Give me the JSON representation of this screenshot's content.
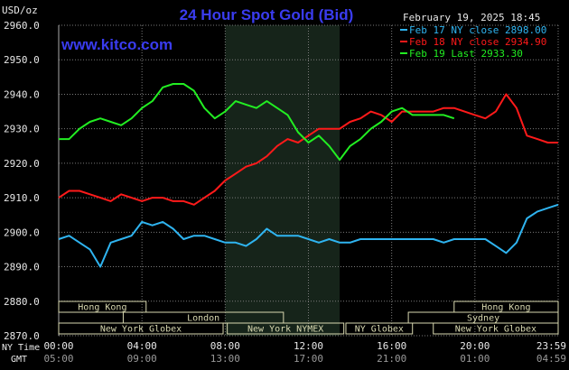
{
  "header": {
    "title": "24 Hour Spot Gold (Bid)",
    "unit": "USD/oz",
    "website": "www.kitco.com",
    "date": "February 19, 2025 18:45"
  },
  "colors": {
    "background": "#000000",
    "title": "#3a3cf0",
    "website": "#3a3cf0",
    "grid": "#7a7a7a",
    "axis_text": "#e8e8e8",
    "session_bar": "#d8d8b0",
    "ny_shade": "#16241a",
    "feb17": "#2fb4f0",
    "feb18": "#ff1a1a",
    "feb19": "#22ee22"
  },
  "chart_data": {
    "type": "line",
    "title": "24 Hour Spot Gold (Bid)",
    "ylabel": "USD/oz",
    "ylim": [
      2870,
      2960
    ],
    "xlim": [
      0,
      24
    ],
    "grid": true,
    "legend_position": "top-right",
    "y_ticks": [
      "2960.0",
      "2950.0",
      "2940.0",
      "2930.0",
      "2920.0",
      "2910.0",
      "2900.0",
      "2890.0",
      "2880.0",
      "2870.0"
    ],
    "x_ticks_ny": [
      "00:00",
      "04:00",
      "08:00",
      "12:00",
      "16:00",
      "20:00",
      "23:59"
    ],
    "x_ticks_gmt": [
      "05:00",
      "09:00",
      "13:00",
      "17:00",
      "21:00",
      "01:00",
      "04:59"
    ],
    "x_label_ny": "NY Time",
    "x_label_gmt": "GMT",
    "shaded_range": [
      8,
      13.5
    ],
    "series": [
      {
        "name": "Feb 17 NY close 2898.00",
        "color": "#2fb4f0",
        "points": [
          [
            0,
            2898
          ],
          [
            0.5,
            2899
          ],
          [
            1,
            2897
          ],
          [
            1.5,
            2895
          ],
          [
            2,
            2890
          ],
          [
            2.5,
            2897
          ],
          [
            3,
            2898
          ],
          [
            3.5,
            2899
          ],
          [
            4,
            2903
          ],
          [
            4.5,
            2902
          ],
          [
            5,
            2903
          ],
          [
            5.5,
            2901
          ],
          [
            6,
            2898
          ],
          [
            6.5,
            2899
          ],
          [
            7,
            2899
          ],
          [
            7.5,
            2898
          ],
          [
            8,
            2897
          ],
          [
            8.5,
            2897
          ],
          [
            9,
            2896
          ],
          [
            9.5,
            2898
          ],
          [
            10,
            2901
          ],
          [
            10.5,
            2899
          ],
          [
            11,
            2899
          ],
          [
            11.5,
            2899
          ],
          [
            12,
            2898
          ],
          [
            12.5,
            2897
          ],
          [
            13,
            2898
          ],
          [
            13.5,
            2897
          ],
          [
            14,
            2897
          ],
          [
            14.5,
            2898
          ],
          [
            15,
            2898
          ],
          [
            16,
            2898
          ],
          [
            17,
            2898
          ],
          [
            18,
            2898
          ],
          [
            18.5,
            2897
          ],
          [
            19,
            2898
          ],
          [
            19.5,
            2898
          ],
          [
            20,
            2898
          ],
          [
            20.5,
            2898
          ],
          [
            21,
            2896
          ],
          [
            21.5,
            2894
          ],
          [
            22,
            2897
          ],
          [
            22.5,
            2904
          ],
          [
            23,
            2906
          ],
          [
            23.5,
            2907
          ],
          [
            24,
            2908
          ]
        ]
      },
      {
        "name": "Feb 18 NY close 2934.90",
        "color": "#ff1a1a",
        "points": [
          [
            0,
            2910
          ],
          [
            0.5,
            2912
          ],
          [
            1,
            2912
          ],
          [
            1.5,
            2911
          ],
          [
            2,
            2910
          ],
          [
            2.5,
            2909
          ],
          [
            3,
            2911
          ],
          [
            3.5,
            2910
          ],
          [
            4,
            2909
          ],
          [
            4.5,
            2910
          ],
          [
            5,
            2910
          ],
          [
            5.5,
            2909
          ],
          [
            6,
            2909
          ],
          [
            6.5,
            2908
          ],
          [
            7,
            2910
          ],
          [
            7.5,
            2912
          ],
          [
            8,
            2915
          ],
          [
            8.5,
            2917
          ],
          [
            9,
            2919
          ],
          [
            9.5,
            2920
          ],
          [
            10,
            2922
          ],
          [
            10.5,
            2925
          ],
          [
            11,
            2927
          ],
          [
            11.5,
            2926
          ],
          [
            12,
            2928
          ],
          [
            12.5,
            2930
          ],
          [
            13,
            2930
          ],
          [
            13.5,
            2930
          ],
          [
            14,
            2932
          ],
          [
            14.5,
            2933
          ],
          [
            15,
            2935
          ],
          [
            15.5,
            2934
          ],
          [
            16,
            2932
          ],
          [
            16.5,
            2935
          ],
          [
            17,
            2935
          ],
          [
            17.5,
            2935
          ],
          [
            18,
            2935
          ],
          [
            18.5,
            2936
          ],
          [
            19,
            2936
          ],
          [
            19.5,
            2935
          ],
          [
            20,
            2934
          ],
          [
            20.5,
            2933
          ],
          [
            21,
            2935
          ],
          [
            21.5,
            2940
          ],
          [
            22,
            2936
          ],
          [
            22.5,
            2928
          ],
          [
            23,
            2927
          ],
          [
            23.5,
            2926
          ],
          [
            24,
            2926
          ]
        ]
      },
      {
        "name": "Feb 19 Last 2933.30",
        "color": "#22ee22",
        "points": [
          [
            0,
            2927
          ],
          [
            0.5,
            2927
          ],
          [
            1,
            2930
          ],
          [
            1.5,
            2932
          ],
          [
            2,
            2933
          ],
          [
            2.5,
            2932
          ],
          [
            3,
            2931
          ],
          [
            3.5,
            2933
          ],
          [
            4,
            2936
          ],
          [
            4.5,
            2938
          ],
          [
            5,
            2942
          ],
          [
            5.5,
            2943
          ],
          [
            6,
            2943
          ],
          [
            6.5,
            2941
          ],
          [
            7,
            2936
          ],
          [
            7.5,
            2933
          ],
          [
            8,
            2935
          ],
          [
            8.5,
            2938
          ],
          [
            9,
            2937
          ],
          [
            9.5,
            2936
          ],
          [
            10,
            2938
          ],
          [
            10.5,
            2936
          ],
          [
            11,
            2934
          ],
          [
            11.5,
            2929
          ],
          [
            12,
            2926
          ],
          [
            12.5,
            2928
          ],
          [
            13,
            2925
          ],
          [
            13.5,
            2921
          ],
          [
            14,
            2925
          ],
          [
            14.5,
            2927
          ],
          [
            15,
            2930
          ],
          [
            15.5,
            2932
          ],
          [
            16,
            2935
          ],
          [
            16.5,
            2936
          ],
          [
            17,
            2934
          ],
          [
            17.5,
            2934
          ],
          [
            18,
            2934
          ],
          [
            18.5,
            2934
          ],
          [
            19,
            2933
          ]
        ]
      }
    ]
  },
  "sessions": [
    {
      "label": "Hong Kong",
      "start": 0,
      "end": 4.2,
      "row": 0
    },
    {
      "label": "London",
      "start": 3.1,
      "end": 10.8,
      "row": 1
    },
    {
      "label": "New York Globex",
      "start": 0,
      "end": 7.9,
      "row": 2
    },
    {
      "label": "New York NYMEX",
      "start": 8.1,
      "end": 13.7,
      "row": 2
    },
    {
      "label": "NY Globex",
      "start": 13.8,
      "end": 17,
      "row": 2
    },
    {
      "label": "Hong Kong",
      "start": 19,
      "end": 24,
      "row": 0
    },
    {
      "label": "Sydney",
      "start": 16.8,
      "end": 24,
      "row": 1
    },
    {
      "label": "New York Globex",
      "start": 18,
      "end": 24,
      "row": 2
    }
  ]
}
